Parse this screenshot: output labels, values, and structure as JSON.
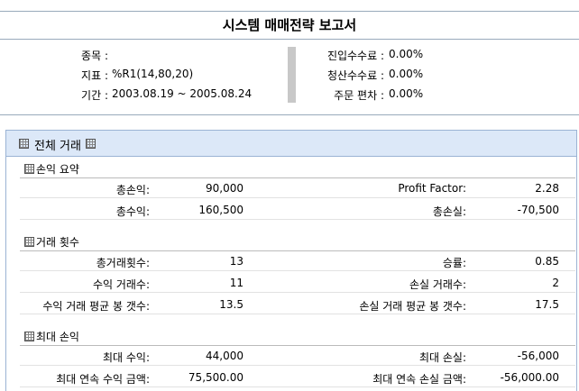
{
  "header": {
    "title": "시스템 매매전략 보고서",
    "left": [
      {
        "label": "종목 :"
      },
      {
        "label": "지표 :",
        "value": "%R1(14,80,20)"
      },
      {
        "label": "기간 :",
        "value": "2003.08.19 ~ 2005.08.24"
      }
    ],
    "right": [
      {
        "label": "진입수수료 :",
        "value": "0.00%"
      },
      {
        "label": "청산수수료 :",
        "value": "0.00%"
      },
      {
        "label": "주문 편차 :",
        "value": "0.00%"
      }
    ]
  },
  "panel": {
    "title": "전체 거래",
    "sections": [
      {
        "title": "손익 요약",
        "rows": [
          [
            "총손익:",
            "90,000",
            "Profit Factor:",
            "2.28"
          ],
          [
            "총수익:",
            "160,500",
            "총손실:",
            "-70,500"
          ]
        ]
      },
      {
        "title": "거래 횟수",
        "rows": [
          [
            "총거래횟수:",
            "13",
            "승률:",
            "0.85"
          ],
          [
            "수익 거래수:",
            "11",
            "손실 거래수:",
            "2"
          ],
          [
            "수익 거래 평균 봉 갯수:",
            "13.5",
            "손실 거래 평균 봉 갯수:",
            "17.5"
          ]
        ]
      },
      {
        "title": "최대 손익",
        "rows": [
          [
            "최대 수익:",
            "44,000",
            "최대 손실:",
            "-56,000"
          ],
          [
            "최대 연속 수익 금액:",
            "75,500.00",
            "최대 연속 손실 금액:",
            "-56,000.00"
          ]
        ]
      }
    ]
  }
}
